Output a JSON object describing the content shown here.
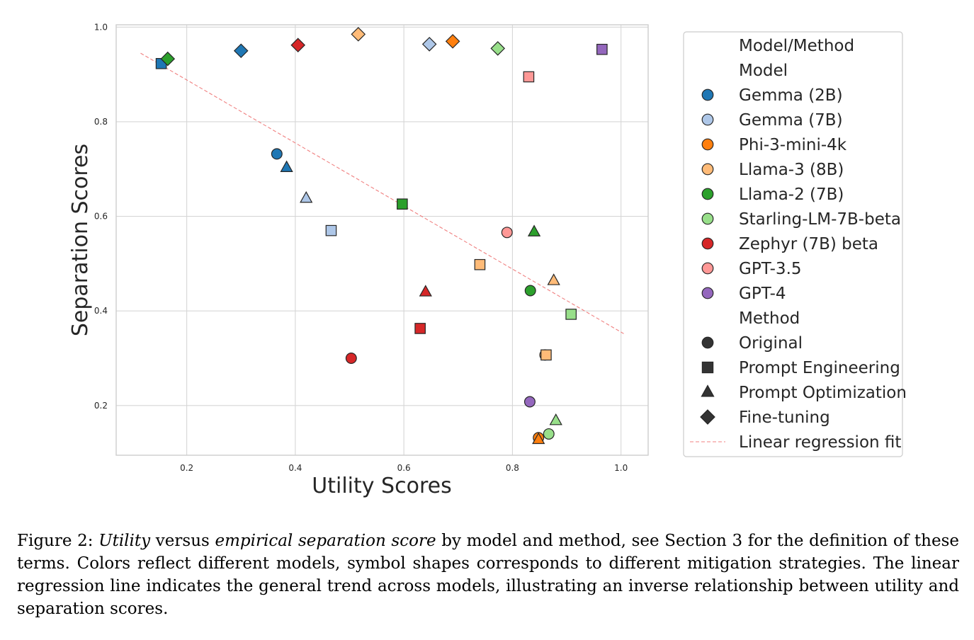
{
  "chart_data": {
    "type": "scatter",
    "xlabel": "Utility Scores",
    "ylabel": "Separation Scores",
    "xlim": [
      0.07,
      1.05
    ],
    "ylim": [
      0.095,
      1.005
    ],
    "x_ticks": [
      0.2,
      0.4,
      0.6,
      0.8,
      1.0
    ],
    "y_ticks": [
      0.2,
      0.4,
      0.6,
      0.8,
      1.0
    ],
    "x_tick_labels": [
      "0.2",
      "0.4",
      "0.6",
      "0.8",
      "1.0"
    ],
    "y_tick_labels": [
      "0.2",
      "0.4",
      "0.6",
      "0.8",
      "1.0"
    ],
    "grid": true,
    "legend_placement": "outside-right",
    "legend": {
      "title": "Model/Method",
      "model_header": "Model",
      "method_header": "Method",
      "models": [
        {
          "name": "Gemma (2B)",
          "color": "#1f77b4"
        },
        {
          "name": "Gemma (7B)",
          "color": "#aec7e8"
        },
        {
          "name": "Phi-3-mini-4k",
          "color": "#ff7f0e"
        },
        {
          "name": "Llama-3 (8B)",
          "color": "#ffbb78"
        },
        {
          "name": "Llama-2 (7B)",
          "color": "#2ca02c"
        },
        {
          "name": "Starling-LM-7B-beta",
          "color": "#98df8a"
        },
        {
          "name": "Zephyr (7B) beta",
          "color": "#d62728"
        },
        {
          "name": "GPT-3.5",
          "color": "#ff9896"
        },
        {
          "name": "GPT-4",
          "color": "#9467bd"
        }
      ],
      "methods": [
        {
          "name": "Original",
          "marker": "circle"
        },
        {
          "name": "Prompt Engineering",
          "marker": "square"
        },
        {
          "name": "Prompt Optimization",
          "marker": "triangle"
        },
        {
          "name": "Fine-tuning",
          "marker": "diamond"
        }
      ],
      "regression_label": "Linear regression fit"
    },
    "regression": {
      "x": [
        0.115,
        1.005
      ],
      "y": [
        0.945,
        0.352
      ],
      "color": "#f08080"
    },
    "points": [
      {
        "model": "Gemma (2B)",
        "method": "Original",
        "x": 0.366,
        "y": 0.732
      },
      {
        "model": "Gemma (2B)",
        "method": "Prompt Engineering",
        "x": 0.153,
        "y": 0.923
      },
      {
        "model": "Gemma (2B)",
        "method": "Prompt Optimization",
        "x": 0.384,
        "y": 0.703
      },
      {
        "model": "Gemma (2B)",
        "method": "Fine-tuning",
        "x": 0.3,
        "y": 0.95
      },
      {
        "model": "Gemma (7B)",
        "method": "Prompt Engineering",
        "x": 0.466,
        "y": 0.57
      },
      {
        "model": "Gemma (7B)",
        "method": "Prompt Optimization",
        "x": 0.42,
        "y": 0.638
      },
      {
        "model": "Gemma (7B)",
        "method": "Fine-tuning",
        "x": 0.647,
        "y": 0.964
      },
      {
        "model": "Phi-3-mini-4k",
        "method": "Original",
        "x": 0.848,
        "y": 0.132
      },
      {
        "model": "Phi-3-mini-4k",
        "method": "Prompt Optimization",
        "x": 0.848,
        "y": 0.128
      },
      {
        "model": "Phi-3-mini-4k",
        "method": "Fine-tuning",
        "x": 0.69,
        "y": 0.97
      },
      {
        "model": "Llama-3 (8B)",
        "method": "Original",
        "x": 0.86,
        "y": 0.307
      },
      {
        "model": "Llama-3 (8B)",
        "method": "Prompt Engineering",
        "x": 0.74,
        "y": 0.498
      },
      {
        "model": "Llama-3 (8B)",
        "method": "Prompt Engineering",
        "x": 0.862,
        "y": 0.307
      },
      {
        "model": "Llama-3 (8B)",
        "method": "Prompt Optimization",
        "x": 0.876,
        "y": 0.464
      },
      {
        "model": "Llama-3 (8B)",
        "method": "Fine-tuning",
        "x": 0.516,
        "y": 0.985
      },
      {
        "model": "Llama-2 (7B)",
        "method": "Original",
        "x": 0.833,
        "y": 0.443
      },
      {
        "model": "Llama-2 (7B)",
        "method": "Prompt Engineering",
        "x": 0.597,
        "y": 0.626
      },
      {
        "model": "Llama-2 (7B)",
        "method": "Prompt Optimization",
        "x": 0.84,
        "y": 0.567
      },
      {
        "model": "Llama-2 (7B)",
        "method": "Fine-tuning",
        "x": 0.165,
        "y": 0.933
      },
      {
        "model": "Starling-LM-7B-beta",
        "method": "Original",
        "x": 0.867,
        "y": 0.14
      },
      {
        "model": "Starling-LM-7B-beta",
        "method": "Prompt Engineering",
        "x": 0.908,
        "y": 0.393
      },
      {
        "model": "Starling-LM-7B-beta",
        "method": "Prompt Optimization",
        "x": 0.88,
        "y": 0.168
      },
      {
        "model": "Starling-LM-7B-beta",
        "method": "Fine-tuning",
        "x": 0.773,
        "y": 0.955
      },
      {
        "model": "Zephyr (7B) beta",
        "method": "Original",
        "x": 0.503,
        "y": 0.3
      },
      {
        "model": "Zephyr (7B) beta",
        "method": "Prompt Engineering",
        "x": 0.63,
        "y": 0.363
      },
      {
        "model": "Zephyr (7B) beta",
        "method": "Prompt Optimization",
        "x": 0.64,
        "y": 0.44
      },
      {
        "model": "Zephyr (7B) beta",
        "method": "Fine-tuning",
        "x": 0.405,
        "y": 0.962
      },
      {
        "model": "GPT-3.5",
        "method": "Original",
        "x": 0.79,
        "y": 0.566
      },
      {
        "model": "GPT-3.5",
        "method": "Prompt Engineering",
        "x": 0.83,
        "y": 0.895
      },
      {
        "model": "GPT-4",
        "method": "Original",
        "x": 0.832,
        "y": 0.208
      },
      {
        "model": "GPT-4",
        "method": "Prompt Engineering",
        "x": 0.965,
        "y": 0.953
      }
    ]
  },
  "caption": {
    "prefix": "Figure 2: ",
    "term1": "Utility",
    "mid1": " versus ",
    "term2": "empirical separation score",
    "rest": " by model and method, see Section 3 for the definition of these terms. Colors reflect different models, symbol shapes corresponds to different mitigation strategies. The linear regression line indicates the general trend across models, illustrating an inverse relationship between utility and separation scores."
  }
}
